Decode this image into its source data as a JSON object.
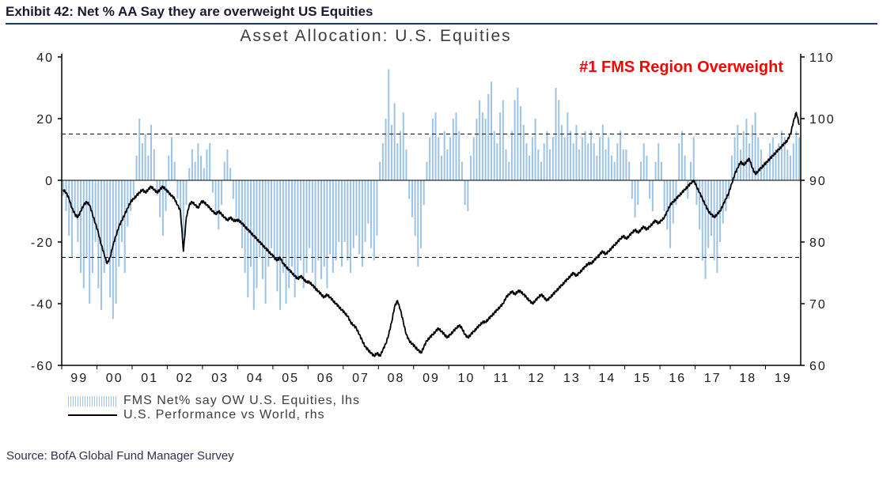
{
  "exhibit": {
    "title": "Exhibit 42: Net % AA Say they are overweight US Equities"
  },
  "source_line": "Source: BofA Global Fund Manager Survey",
  "colors": {
    "navy_rule": "#1F3864",
    "bar_blue": "#9DC3E6",
    "line_black": "#000000",
    "annotation_red": "#FF0000"
  },
  "chart_data": {
    "type": "bar",
    "subtype": "combo-bar-line",
    "title": "Asset Allocation: U.S. Equities",
    "annotation": "#1 FMS Region Overweight",
    "x_tick_labels": [
      "99",
      "00",
      "01",
      "02",
      "03",
      "04",
      "05",
      "06",
      "07",
      "08",
      "09",
      "10",
      "11",
      "12",
      "13",
      "14",
      "15",
      "16",
      "17",
      "18",
      "19"
    ],
    "points_per_year": 12,
    "left_axis": {
      "min": -60,
      "max": 40,
      "ticks": [
        40,
        20,
        0,
        -20,
        -40,
        -60
      ]
    },
    "right_axis": {
      "min": 60,
      "max": 110,
      "ticks": [
        110,
        100,
        90,
        80,
        70,
        60
      ]
    },
    "reference_lines_left_axis": [
      15,
      -25
    ],
    "grid": false,
    "legend_position": "bottom-left",
    "series": [
      {
        "name": "FMS Net% say OW U.S. Equities, lhs",
        "type": "bar",
        "axis": "left",
        "color": "#9DC3E6",
        "values_by_year": [
          [
            -5,
            -10,
            -18,
            -25,
            -12,
            -20,
            -30,
            -35,
            -25,
            -40,
            -30,
            -20
          ],
          [
            -35,
            -42,
            -30,
            -25,
            -38,
            -45,
            -40,
            -28,
            -20,
            -30,
            -15,
            -10
          ],
          [
            -5,
            8,
            20,
            12,
            15,
            8,
            18,
            10,
            -5,
            -12,
            -18,
            -10
          ],
          [
            8,
            14,
            6,
            -6,
            -12,
            -18,
            -8,
            4,
            10,
            6,
            12,
            8
          ],
          [
            4,
            10,
            12,
            -4,
            -10,
            -16,
            -8,
            6,
            10,
            4,
            -6,
            -12
          ],
          [
            -14,
            -22,
            -30,
            -38,
            -28,
            -42,
            -35,
            -25,
            -32,
            -40,
            -28,
            -22
          ],
          [
            -26,
            -36,
            -42,
            -30,
            -40,
            -35,
            -28,
            -38,
            -32,
            -26,
            -35,
            -30
          ],
          [
            -22,
            -30,
            -36,
            -26,
            -32,
            -28,
            -35,
            -24,
            -30,
            -26,
            -20,
            -28
          ],
          [
            -20,
            -26,
            -30,
            -22,
            -18,
            -24,
            -28,
            -20,
            -14,
            -22,
            -26,
            -18
          ],
          [
            6,
            12,
            20,
            36,
            18,
            25,
            12,
            16,
            22,
            10,
            -6,
            -12
          ],
          [
            -18,
            -28,
            -22,
            -8,
            6,
            14,
            20,
            22,
            14,
            8,
            16,
            10
          ],
          [
            14,
            20,
            22,
            16,
            6,
            -8,
            -10,
            8,
            14,
            20,
            26,
            22
          ],
          [
            20,
            28,
            32,
            16,
            12,
            22,
            26,
            10,
            6,
            16,
            26,
            30
          ],
          [
            24,
            18,
            12,
            8,
            14,
            20,
            10,
            6,
            12,
            16,
            10,
            14
          ],
          [
            30,
            26,
            18,
            14,
            22,
            16,
            12,
            18,
            10,
            14,
            16,
            12
          ],
          [
            16,
            12,
            8,
            14,
            18,
            10,
            14,
            8,
            6,
            12,
            16,
            10
          ],
          [
            10,
            6,
            -6,
            -12,
            -8,
            6,
            12,
            8,
            -6,
            -10,
            6,
            12
          ],
          [
            6,
            -10,
            -16,
            -22,
            -14,
            -8,
            12,
            16,
            8,
            -6,
            6,
            14
          ],
          [
            -8,
            -16,
            -26,
            -32,
            -22,
            -18,
            -26,
            -30,
            -20,
            -14,
            -10,
            -6
          ],
          [
            8,
            14,
            18,
            10,
            16,
            20,
            12,
            18,
            22,
            14,
            10,
            6
          ],
          [
            6,
            12,
            14,
            10,
            12,
            16,
            14,
            10,
            8,
            12,
            16,
            14
          ]
        ]
      },
      {
        "name": "U.S. Performance vs World, rhs",
        "type": "line",
        "axis": "right",
        "color": "#000000",
        "values_by_year": [
          [
            88.5,
            88,
            87,
            85.5,
            84.5,
            84,
            85,
            86,
            86.5,
            86,
            84.5,
            83
          ],
          [
            81.5,
            79.5,
            78,
            76.5,
            77.5,
            79.5,
            81,
            82.5,
            83.5,
            84.5,
            85.5,
            86.5
          ],
          [
            87,
            87.5,
            88,
            88.5,
            88,
            88.5,
            89,
            88.5,
            88,
            88.5,
            89,
            88.5
          ],
          [
            88,
            87.5,
            87,
            86,
            85,
            78.5,
            84,
            86,
            86.5,
            86,
            85.5,
            86.5
          ],
          [
            86.5,
            86,
            85.5,
            85,
            84.5,
            85,
            84.5,
            84,
            83.5,
            84,
            83.5,
            83.5
          ],
          [
            83.5,
            83,
            82.5,
            82,
            81.5,
            81,
            80.5,
            80,
            79.5,
            79,
            78.5,
            78
          ],
          [
            77.5,
            77,
            77.5,
            76.5,
            76,
            75.5,
            75,
            74.5,
            74,
            74.5,
            74,
            73.5
          ],
          [
            73.5,
            73,
            72.5,
            72,
            71.5,
            71,
            71.5,
            71,
            70.5,
            70,
            69.5,
            69
          ],
          [
            68.5,
            68,
            67,
            66.5,
            66,
            65,
            64,
            63,
            62.5,
            62,
            61.5,
            62
          ],
          [
            61.5,
            62.5,
            63.5,
            65,
            67,
            69.5,
            70.5,
            69,
            67,
            65,
            64,
            63.5
          ],
          [
            63,
            62.5,
            62,
            63,
            64,
            64.5,
            65,
            65.5,
            66,
            65.5,
            65,
            64.5
          ],
          [
            65,
            65.5,
            66,
            66.5,
            66,
            65,
            64.5,
            65,
            65.5,
            66,
            66.5,
            67
          ],
          [
            67,
            67.5,
            68,
            68.5,
            69,
            69.5,
            70,
            71,
            71.5,
            72,
            71.5,
            72
          ],
          [
            72,
            71.5,
            71,
            70.5,
            70,
            70.5,
            71,
            71.5,
            71,
            70.5,
            71,
            71.5
          ],
          [
            72,
            72.5,
            73,
            73.5,
            74,
            74.5,
            75,
            74.5,
            75,
            75.5,
            76,
            76.5
          ],
          [
            76.5,
            77,
            77.5,
            78,
            78.5,
            78,
            78.5,
            79,
            79.5,
            80,
            80.5,
            81
          ],
          [
            80.5,
            81,
            81.5,
            82,
            81.5,
            82,
            82.5,
            82,
            82.5,
            83,
            83.5,
            83
          ],
          [
            83.5,
            84,
            85,
            86,
            86.5,
            87,
            87.5,
            88,
            88.5,
            89,
            89.5,
            90
          ],
          [
            89,
            88,
            87,
            86,
            85,
            84.5,
            84,
            84.5,
            85,
            86,
            87,
            88
          ],
          [
            89.5,
            91,
            92,
            93,
            92.5,
            93,
            93.5,
            92,
            91,
            91.5,
            92,
            92.5
          ],
          [
            93,
            93.5,
            94,
            94.5,
            95,
            95.5,
            96,
            96.5,
            97.5,
            99.5,
            101,
            99
          ]
        ]
      }
    ]
  }
}
